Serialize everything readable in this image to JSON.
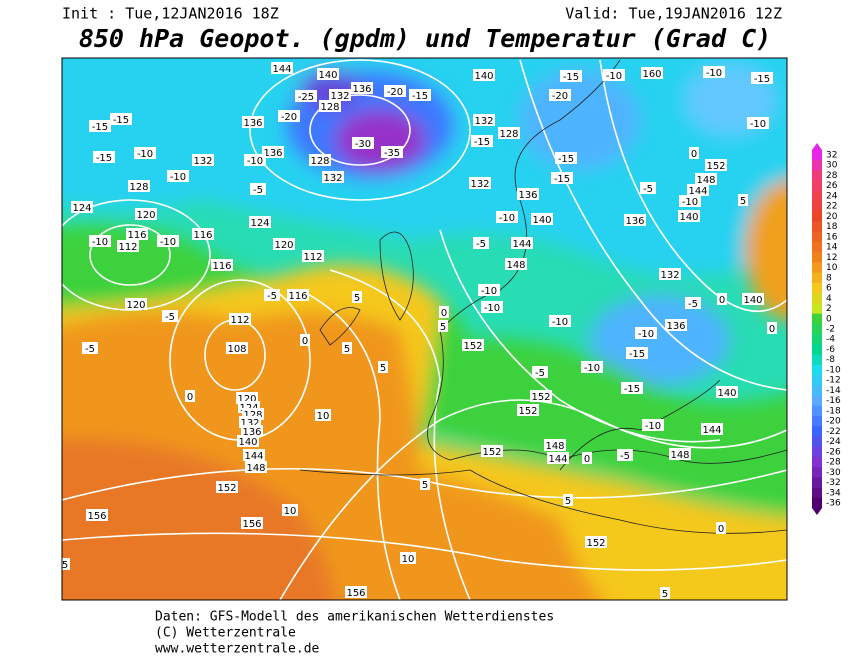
{
  "header": {
    "init": "Init : Tue,12JAN2016 18Z",
    "valid": "Valid: Tue,19JAN2016 12Z",
    "title": "850 hPa Geopot. (gpdm) und Temperatur (Grad C)"
  },
  "legend": {
    "levels": [
      32,
      30,
      28,
      26,
      24,
      22,
      20,
      18,
      16,
      14,
      12,
      10,
      8,
      6,
      4,
      2,
      0,
      -2,
      -4,
      -6,
      -8,
      -10,
      -12,
      -14,
      -16,
      -18,
      -20,
      -22,
      -24,
      -26,
      -28,
      -30,
      -32,
      -34,
      -36
    ]
  },
  "map": {
    "geopotential_labels": [
      144,
      140,
      136,
      132,
      128,
      140,
      160,
      136,
      132,
      128,
      132,
      136,
      128,
      132,
      132,
      136,
      128,
      124,
      120,
      116,
      112,
      116,
      124,
      120,
      112,
      116,
      116,
      120,
      112,
      108,
      140,
      144,
      148,
      136,
      140,
      144,
      148,
      152,
      132,
      136,
      140,
      140,
      144,
      148,
      152,
      152,
      152,
      148,
      144,
      152,
      120,
      124,
      128,
      132,
      136,
      140,
      144,
      148,
      152,
      156,
      156,
      152,
      156
    ],
    "temperature_labels": [
      -15,
      -15,
      -10,
      -15,
      -10,
      -10,
      -5,
      -10,
      -10,
      -5,
      -5,
      -5,
      0,
      5,
      5,
      0,
      5,
      10,
      10,
      5,
      10,
      5,
      -20,
      -25,
      -30,
      -35,
      -20,
      -15,
      -15,
      -20,
      -15,
      -10,
      -10,
      -15,
      -10,
      -15,
      -15,
      -10,
      -5,
      -5,
      -10,
      0,
      -5,
      0,
      -10,
      -10,
      -10,
      -5,
      -10,
      -15,
      -10,
      -15,
      -10,
      -5,
      0,
      0,
      5,
      0,
      5,
      5,
      0,
      5
    ]
  },
  "footer": {
    "lines": [
      "Daten: GFS-Modell des amerikanischen Wetterdienstes",
      "(C) Wetterzentrale",
      "www.wetterzentrale.de"
    ]
  }
}
